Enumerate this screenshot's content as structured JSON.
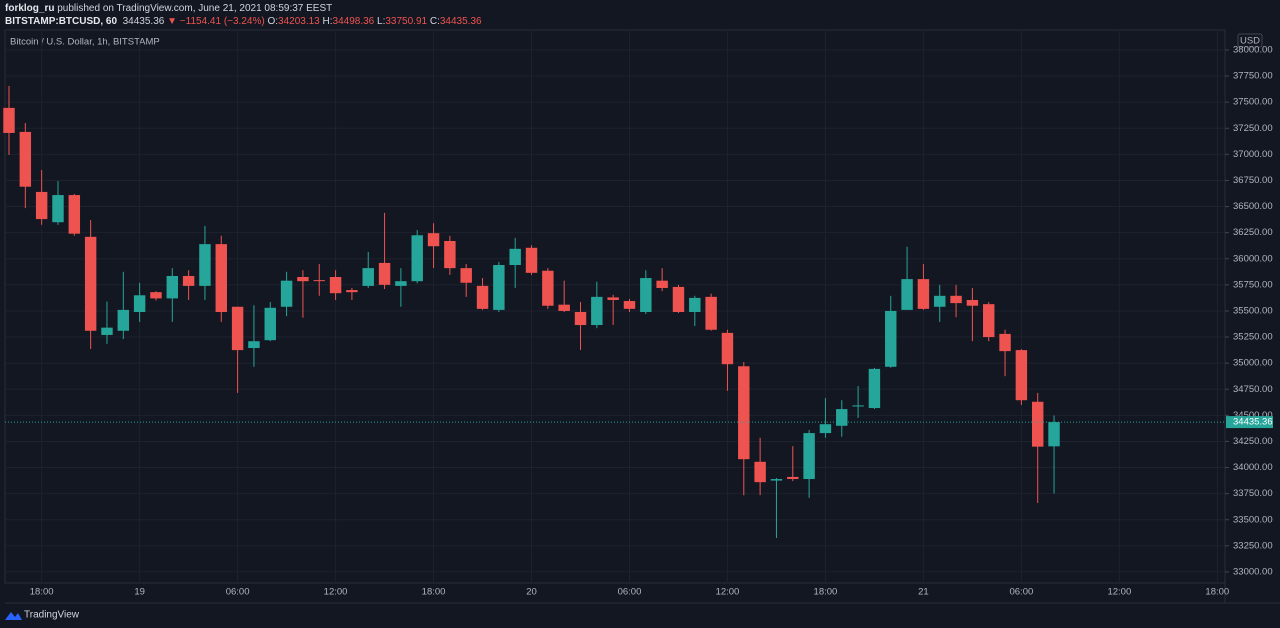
{
  "header": {
    "author": "forklog_ru",
    "published": "published on TradingView.com, June 21, 2021 08:59:37 EEST",
    "symbol": "BITSTAMP:BTCUSD, 60",
    "price": "34435.36",
    "arrow": "▼",
    "change": "−1154.41 (−3.24%)",
    "ohlc": [
      {
        "key": "O:",
        "value": "34203.13"
      },
      {
        "key": "H:",
        "value": "34498.36"
      },
      {
        "key": "L:",
        "value": "33750.91"
      },
      {
        "key": "C:",
        "value": "34435.36"
      }
    ]
  },
  "footer": {
    "brand": "TradingView"
  },
  "chart_data": {
    "type": "candlestick",
    "title": "Bitcoin / U.S. Dollar, 1h, BITSTAMP",
    "currency": "USD",
    "up_color": "#26a69a",
    "down_color": "#ef5350",
    "grid": true,
    "open": [
      37445,
      37215,
      36640,
      36350,
      36610,
      36210,
      35270,
      35310,
      35490,
      35680,
      35620,
      35835,
      35740,
      36140,
      35540,
      35145,
      35220,
      35540,
      35825,
      35795,
      35825,
      35700,
      35740,
      35960,
      35740,
      35785,
      36245,
      36170,
      35910,
      35740,
      35510,
      35940,
      36105,
      35885,
      35560,
      35490,
      35365,
      35630,
      35595,
      35490,
      35790,
      35730,
      35490,
      35635,
      35290,
      34970,
      34055,
      33875,
      33910,
      33890,
      34330,
      34400,
      34585,
      34570,
      34965,
      35510,
      35805,
      35540,
      35645,
      35605,
      35565,
      35280,
      35125,
      34630,
      34203.13
    ],
    "high": [
      37655,
      37300,
      36850,
      36745,
      36620,
      36370,
      35590,
      35875,
      35770,
      35690,
      35910,
      35890,
      36315,
      36220,
      35540,
      35555,
      35585,
      35875,
      35890,
      35950,
      35890,
      35720,
      36065,
      36440,
      35910,
      36275,
      36340,
      36220,
      35950,
      35815,
      35970,
      36200,
      36130,
      35910,
      35790,
      35585,
      35780,
      35655,
      35615,
      35890,
      35910,
      35750,
      35645,
      35665,
      35320,
      35010,
      34285,
      33900,
      34205,
      34360,
      34665,
      34645,
      34780,
      34955,
      35645,
      36115,
      35950,
      35750,
      35750,
      35720,
      35585,
      35320,
      35135,
      34715,
      34498.36
    ],
    "low": [
      36995,
      36485,
      36325,
      36325,
      36220,
      35135,
      35185,
      35230,
      35395,
      35600,
      35395,
      35605,
      35605,
      35395,
      34715,
      34965,
      35210,
      35450,
      35435,
      35645,
      35605,
      35605,
      35720,
      35710,
      35540,
      35765,
      35910,
      35845,
      35635,
      35510,
      35490,
      35720,
      35845,
      35520,
      35490,
      35125,
      35335,
      35365,
      35490,
      35470,
      35690,
      35480,
      35355,
      35310,
      34735,
      33735,
      33735,
      33325,
      33870,
      33710,
      34285,
      34295,
      34475,
      34560,
      34955,
      35510,
      35510,
      35395,
      35440,
      35210,
      35210,
      34875,
      34600,
      33660,
      33750.91
    ],
    "close": [
      37205,
      36690,
      36380,
      36610,
      36240,
      35310,
      35340,
      35510,
      35650,
      35620,
      35835,
      35740,
      36140,
      35490,
      35125,
      35210,
      35530,
      35790,
      35785,
      35790,
      35670,
      35680,
      35910,
      35750,
      35785,
      36225,
      36120,
      35910,
      35770,
      35520,
      35940,
      36095,
      35865,
      35550,
      35500,
      35365,
      35635,
      35605,
      35520,
      35815,
      35720,
      35490,
      35625,
      35320,
      34990,
      34080,
      33860,
      33890,
      33890,
      34330,
      34415,
      34560,
      34595,
      34945,
      35500,
      35805,
      35520,
      35645,
      35575,
      35550,
      35250,
      35115,
      34645,
      34200,
      34435.36
    ],
    "ylim": [
      32894,
      38172
    ],
    "yticks": [
      {
        "value": 33000,
        "label": "33000.00"
      },
      {
        "value": 33250,
        "label": "33250.00"
      },
      {
        "value": 33500,
        "label": "33500.00"
      },
      {
        "value": 33750,
        "label": "33750.00"
      },
      {
        "value": 34000,
        "label": "34000.00"
      },
      {
        "value": 34250,
        "label": "34250.00"
      },
      {
        "value": 34500,
        "label": "34500.00"
      },
      {
        "value": 34750,
        "label": "34750.00"
      },
      {
        "value": 35000,
        "label": "35000.00"
      },
      {
        "value": 35250,
        "label": "35250.00"
      },
      {
        "value": 35500,
        "label": "35500.00"
      },
      {
        "value": 35750,
        "label": "35750.00"
      },
      {
        "value": 36000,
        "label": "36000.00"
      },
      {
        "value": 36250,
        "label": "36250.00"
      },
      {
        "value": 36500,
        "label": "36500.00"
      },
      {
        "value": 36750,
        "label": "36750.00"
      },
      {
        "value": 37000,
        "label": "37000.00"
      },
      {
        "value": 37250,
        "label": "37250.00"
      },
      {
        "value": 37500,
        "label": "37500.00"
      },
      {
        "value": 37750,
        "label": "37750.00"
      },
      {
        "value": 38000,
        "label": "38000.00"
      }
    ],
    "xlim": [
      -0.245,
      74.47
    ],
    "xticks": [
      {
        "value": 2,
        "label": "18:00"
      },
      {
        "value": 8,
        "label": "19"
      },
      {
        "value": 14,
        "label": "06:00"
      },
      {
        "value": 20,
        "label": "12:00"
      },
      {
        "value": 26,
        "label": "18:00"
      },
      {
        "value": 32,
        "label": "20"
      },
      {
        "value": 38,
        "label": "06:00"
      },
      {
        "value": 44,
        "label": "12:00"
      },
      {
        "value": 50,
        "label": "18:00"
      },
      {
        "value": 56,
        "label": "21"
      },
      {
        "value": 62,
        "label": "06:00"
      },
      {
        "value": 68,
        "label": "12:00"
      },
      {
        "value": 74,
        "label": "18:00"
      }
    ]
  }
}
